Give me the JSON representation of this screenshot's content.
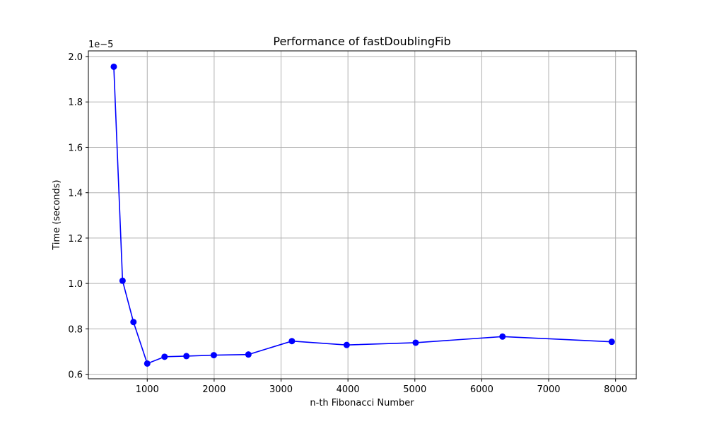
{
  "chart_data": {
    "type": "line",
    "title": "Performance of fastDoublingFib",
    "xlabel": "n-th Fibonacci Number",
    "ylabel": "Time (seconds)",
    "y_offset_label": "1e−5",
    "grid": true,
    "xlim": [
      120,
      8310
    ],
    "ylim": [
      0.58,
      2.025
    ],
    "x_ticks": [
      1000,
      2000,
      3000,
      4000,
      5000,
      6000,
      7000,
      8000
    ],
    "x_tick_labels": [
      "1000",
      "2000",
      "3000",
      "4000",
      "5000",
      "6000",
      "7000",
      "8000"
    ],
    "y_ticks": [
      0.6,
      0.8,
      1.0,
      1.2,
      1.4,
      1.6,
      1.8,
      2.0
    ],
    "y_tick_labels": [
      "0.6",
      "0.8",
      "1.0",
      "1.2",
      "1.4",
      "1.6",
      "1.8",
      "2.0"
    ],
    "series": [
      {
        "color": "#0000ff",
        "marker": "circle",
        "x": [
          500,
          631,
          794,
          1000,
          1259,
          1585,
          1995,
          2512,
          3162,
          3981,
          5012,
          6310,
          7943
        ],
        "y": [
          1.955,
          1.012,
          0.83,
          0.647,
          0.677,
          0.68,
          0.684,
          0.687,
          0.746,
          0.729,
          0.739,
          0.766,
          0.743
        ]
      }
    ]
  }
}
